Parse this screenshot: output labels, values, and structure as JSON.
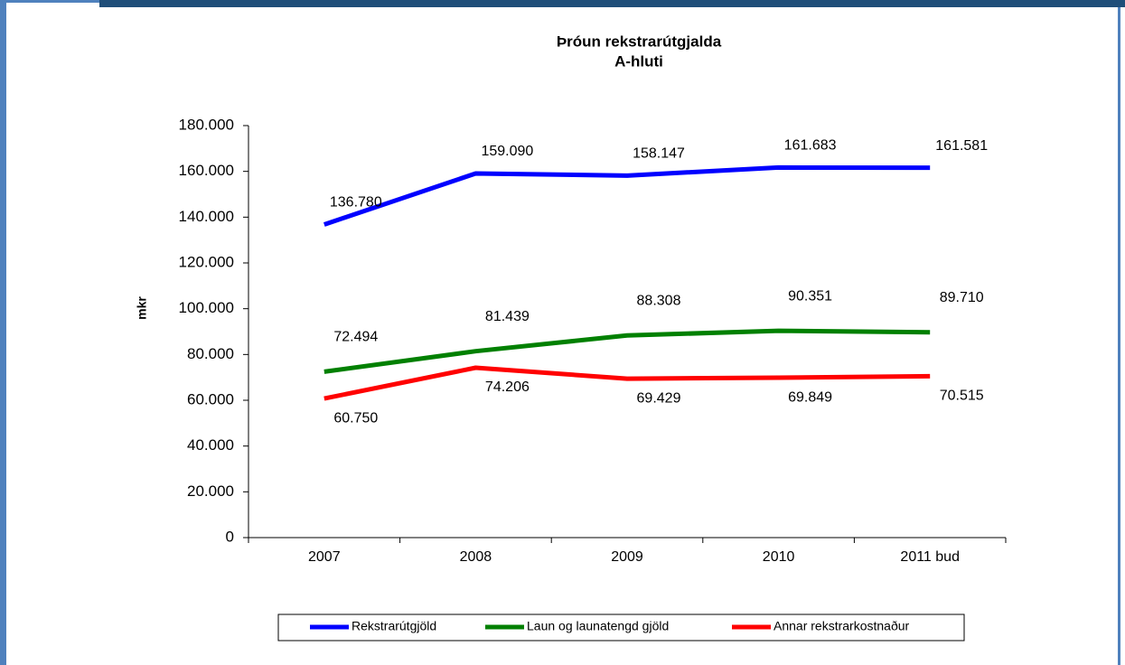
{
  "chart_data": {
    "type": "line",
    "title": "Þróun rekstrarútgjalda",
    "subtitle": "A-hluti",
    "y_label": "mkr",
    "categories": [
      "2007",
      "2008",
      "2009",
      "2010",
      "2011 bud"
    ],
    "series": [
      {
        "name": "Rekstrarútgjöld",
        "color": "#0000ff",
        "values": [
          136780,
          159090,
          158147,
          161683,
          161581
        ],
        "value_labels": [
          "136.780",
          "159.090",
          "158.147",
          "161.683",
          "161.581"
        ]
      },
      {
        "name": "Laun og launatengd gjöld",
        "color": "#008000",
        "values": [
          72494,
          81439,
          88308,
          90351,
          89710
        ],
        "value_labels": [
          "72.494",
          "81.439",
          "88.308",
          "90.351",
          "89.710"
        ]
      },
      {
        "name": "Annar rekstrarkostnaður",
        "color": "#ff0000",
        "values": [
          60750,
          74206,
          69429,
          69849,
          70515
        ],
        "value_labels": [
          "60.750",
          "74.206",
          "69.429",
          "69.849",
          "70.515"
        ]
      }
    ],
    "ylim": [
      0,
      180000
    ],
    "yticks": [
      0,
      {
        "value": 20000,
        "label": "20.000"
      },
      {
        "value": 40000,
        "label": "40.000"
      },
      {
        "value": 60000,
        "label": "60.000"
      },
      {
        "value": 80000,
        "label": "80.000"
      },
      {
        "value": 100000,
        "label": "100.000"
      },
      {
        "value": 120000,
        "label": "120.000"
      },
      {
        "value": 140000,
        "label": "140.000"
      },
      {
        "value": 160000,
        "label": "160.000"
      },
      {
        "value": 180000,
        "label": "180.000"
      }
    ],
    "grid": false,
    "legend": "bottom"
  }
}
